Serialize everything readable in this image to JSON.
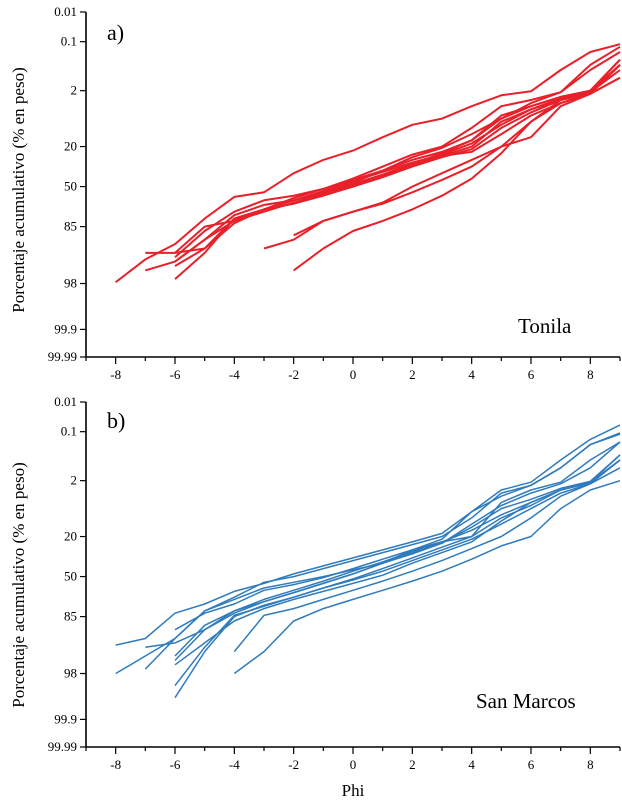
{
  "chart_data": [
    {
      "type": "line",
      "panel_label": "a)",
      "site_label": "Tonila",
      "line_color": "#e8202a",
      "xlabel": "",
      "ylabel": "Porcentaje acumulativo  (% en peso)",
      "xlim": [
        -9,
        9
      ],
      "x_ticks": [
        "-8",
        "-6",
        "-4",
        "-2",
        "0",
        "2",
        "4",
        "6",
        "8"
      ],
      "y_tick_labels": [
        "0.01",
        "0.1",
        "2",
        "20",
        "50",
        "85",
        "98",
        "99.9",
        "99.99"
      ],
      "y_tick_values": [
        0.01,
        0.1,
        2,
        20,
        50,
        85,
        98,
        99.9,
        99.99
      ],
      "series": [
        {
          "x": [
            -8,
            -7,
            -6,
            -5,
            -4,
            -3,
            -2,
            -1,
            0,
            1,
            2,
            3,
            4,
            5,
            6,
            7,
            8,
            9
          ],
          "y": [
            97.7,
            92.5,
            89,
            78,
            59,
            55,
            40,
            30,
            23,
            17,
            13,
            11,
            7,
            3.5,
            2.2,
            1.2,
            0.5,
            0.2
          ]
        },
        {
          "x": [
            -7,
            -6,
            -5,
            -4,
            -3,
            -2,
            -1,
            0,
            1,
            2,
            3,
            4,
            5,
            6,
            7,
            8,
            9
          ],
          "y": [
            91,
            91,
            90,
            78,
            70,
            60,
            52,
            44,
            35,
            26,
            20,
            14,
            7,
            5,
            2.5,
            1.2,
            0.5
          ]
        },
        {
          "x": [
            -7,
            -6,
            -5,
            -4,
            -3,
            -2,
            -1,
            0,
            1,
            2,
            3,
            4,
            5,
            6,
            7,
            8,
            9
          ],
          "y": [
            95,
            93,
            88,
            80,
            72,
            64,
            57,
            50,
            42,
            33,
            25,
            18,
            11,
            7,
            4,
            2,
            1
          ]
        },
        {
          "x": [
            -6,
            -5,
            -4,
            -3,
            -2,
            -1,
            0,
            1,
            2,
            3,
            4,
            5,
            6,
            7,
            8,
            9
          ],
          "y": [
            97,
            91,
            78,
            70,
            62,
            56,
            49,
            42,
            34,
            27,
            20,
            12,
            8,
            4.5,
            2.2,
            1
          ]
        },
        {
          "x": [
            -6,
            -5,
            -4,
            -3,
            -2,
            -1,
            0,
            1,
            2,
            3,
            4,
            5,
            6,
            7,
            8,
            9
          ],
          "y": [
            94,
            90,
            82,
            70,
            65,
            58,
            50,
            43,
            35,
            28,
            22,
            14,
            9,
            5,
            2.5,
            1.2
          ]
        },
        {
          "x": [
            -6,
            -5,
            -4,
            -3,
            -2,
            -1,
            0,
            1,
            2,
            3,
            4,
            5,
            6,
            7,
            8,
            9
          ],
          "y": [
            93,
            88,
            75,
            66,
            62,
            55,
            48,
            41,
            33,
            27,
            24,
            16,
            10,
            6,
            3,
            1.5
          ]
        },
        {
          "x": [
            -6,
            -5,
            -4,
            -3,
            -2,
            -1,
            0,
            1,
            2,
            3,
            4,
            5,
            6,
            7,
            8,
            9
          ],
          "y": [
            92,
            86,
            72,
            62,
            58,
            52,
            45,
            38,
            30,
            24,
            18,
            10,
            7,
            4,
            2,
            0.8
          ]
        },
        {
          "x": [
            -6,
            -5,
            -4,
            -3,
            -2,
            -1,
            0,
            1,
            2,
            3,
            4,
            5,
            6,
            7,
            8,
            9
          ],
          "y": [
            91,
            85,
            80,
            70,
            62,
            54,
            46,
            39,
            32,
            26,
            19,
            13,
            8,
            5,
            3,
            1.5
          ]
        },
        {
          "x": [
            -3,
            -2,
            -1,
            0,
            1,
            2,
            3,
            4,
            5,
            6,
            7,
            8,
            9
          ],
          "y": [
            90,
            88,
            80,
            72,
            64,
            50,
            40,
            30,
            20,
            12,
            6,
            3,
            1
          ]
        },
        {
          "x": [
            -2,
            -1,
            0,
            1,
            2,
            3,
            4,
            5,
            6,
            7,
            8,
            9
          ],
          "y": [
            87,
            80,
            72,
            65,
            55,
            45,
            35,
            20,
            17,
            7,
            3,
            1
          ]
        },
        {
          "x": [
            -2,
            -1,
            0,
            1,
            2,
            3,
            4,
            5,
            6,
            7,
            8,
            9
          ],
          "y": [
            95,
            90,
            86,
            80,
            70,
            58,
            44,
            25,
            12,
            5,
            2,
            0.8
          ]
        },
        {
          "x": [
            -4,
            -3,
            -2,
            -1,
            0,
            1,
            2,
            3,
            4,
            5,
            6,
            7,
            8,
            9
          ],
          "y": [
            80,
            70,
            65,
            55,
            47,
            38,
            28,
            21,
            16,
            11,
            6,
            2.5,
            1,
            0.3
          ]
        }
      ]
    },
    {
      "type": "line",
      "panel_label": "b)",
      "site_label": "San Marcos",
      "line_color": "#2f7bbd",
      "xlabel": "Phi",
      "ylabel": "Porcentaje acumulativo  (% en peso)",
      "xlim": [
        -9,
        9
      ],
      "x_ticks": [
        "-8",
        "-6",
        "-4",
        "-2",
        "0",
        "2",
        "4",
        "6",
        "8"
      ],
      "y_tick_labels": [
        "0.01",
        "0.1",
        "2",
        "20",
        "50",
        "85",
        "98",
        "99.9",
        "99.99"
      ],
      "y_tick_values": [
        0.01,
        0.1,
        2,
        20,
        50,
        85,
        98,
        99.9,
        99.99
      ],
      "series": [
        {
          "x": [
            -8,
            -7,
            -6,
            -5,
            -4,
            -3,
            -2,
            -1,
            0,
            1,
            2,
            3,
            4,
            5,
            6,
            7,
            8,
            9
          ],
          "y": [
            91.5,
            90,
            82,
            74,
            63,
            56,
            48,
            42,
            36,
            30,
            24,
            19,
            12,
            5,
            2.5,
            1.2,
            0.4,
            0.08
          ]
        },
        {
          "x": [
            -8,
            -7,
            -6,
            -5,
            -4,
            -3,
            -2,
            -1,
            0,
            1,
            2,
            3,
            4,
            5,
            6,
            7,
            8,
            9
          ],
          "y": [
            98,
            94,
            90,
            80,
            68,
            55,
            50,
            44,
            38,
            32,
            26,
            20,
            14,
            6,
            3.5,
            1.5,
            0.6,
            0.15
          ]
        },
        {
          "x": [
            -7,
            -6,
            -5,
            -4,
            -3,
            -2,
            -1,
            0,
            1,
            2,
            3,
            4,
            5,
            6,
            7,
            8,
            9
          ],
          "y": [
            97,
            90,
            80,
            70,
            60,
            55,
            50,
            45,
            40,
            30,
            22,
            12,
            7,
            3.5,
            1.5,
            0.6,
            0.2
          ]
        },
        {
          "x": [
            -7,
            -6,
            -5,
            -4,
            -3,
            -2,
            -1,
            0,
            1,
            2,
            3,
            4,
            5,
            6,
            7,
            8,
            9
          ],
          "y": [
            92,
            91,
            88,
            80,
            72,
            64,
            56,
            48,
            40,
            33,
            25,
            16,
            10,
            6,
            3,
            1.5,
            0.5
          ]
        },
        {
          "x": [
            -6,
            -5,
            -4,
            -3,
            -2,
            -1,
            0,
            1,
            2,
            3,
            4,
            5,
            6,
            7,
            8,
            9
          ],
          "y": [
            99,
            93,
            85,
            75,
            68,
            60,
            52,
            44,
            36,
            28,
            20,
            14,
            10,
            5,
            2.5,
            1
          ]
        },
        {
          "x": [
            -6,
            -5,
            -4,
            -3,
            -2,
            -1,
            0,
            1,
            2,
            3,
            4,
            5,
            6,
            7,
            8,
            9
          ],
          "y": [
            98.5,
            92,
            84,
            76,
            68,
            60,
            53,
            46,
            38,
            30,
            22,
            16,
            11,
            6,
            3,
            1.5
          ]
        },
        {
          "x": [
            -6,
            -5,
            -4,
            -3,
            -2,
            -1,
            0,
            1,
            2,
            3,
            4,
            5,
            6,
            7,
            8,
            9
          ],
          "y": [
            95,
            88,
            82,
            72,
            64,
            56,
            48,
            40,
            32,
            25,
            17,
            11,
            8,
            4.5,
            2.2,
            1
          ]
        },
        {
          "x": [
            -6,
            -5,
            -4,
            -3,
            -2,
            -1,
            0,
            1,
            2,
            3,
            4,
            5,
            6,
            7,
            8,
            9
          ],
          "y": [
            94,
            87,
            80,
            70,
            62,
            54,
            46,
            39,
            31,
            24,
            18,
            13,
            9,
            5,
            2.8,
            1.2
          ]
        },
        {
          "x": [
            -6,
            -5,
            -4,
            -3,
            -2,
            -1,
            0,
            1,
            2,
            3,
            4,
            5,
            6,
            7,
            8,
            9
          ],
          "y": [
            96,
            91,
            86,
            78,
            70,
            63,
            56,
            49,
            40,
            32,
            24,
            15,
            9,
            5,
            2.5,
            1.2
          ]
        },
        {
          "x": [
            -4,
            -3,
            -2,
            -1,
            0,
            1,
            2,
            3,
            4,
            5,
            6,
            7,
            8,
            9
          ],
          "y": [
            98,
            93,
            86,
            78,
            70,
            62,
            54,
            46,
            37,
            27,
            20,
            11,
            5,
            2
          ]
        },
        {
          "x": [
            -4,
            -3,
            -2,
            -1,
            0,
            1,
            2,
            3,
            4,
            5,
            6,
            7,
            8,
            9
          ],
          "y": [
            93,
            84,
            78,
            70,
            62,
            54,
            46,
            38,
            29,
            20,
            14,
            7,
            3,
            1.2
          ]
        },
        {
          "x": [
            -6,
            -5,
            -4,
            -3,
            -2,
            -1,
            0,
            1,
            2,
            3,
            4,
            5,
            6,
            7,
            8,
            9
          ],
          "y": [
            88,
            82,
            74,
            62,
            57,
            51,
            44,
            37,
            30,
            24,
            20,
            9,
            5,
            2.5,
            1.2,
            0.5
          ]
        }
      ]
    }
  ]
}
